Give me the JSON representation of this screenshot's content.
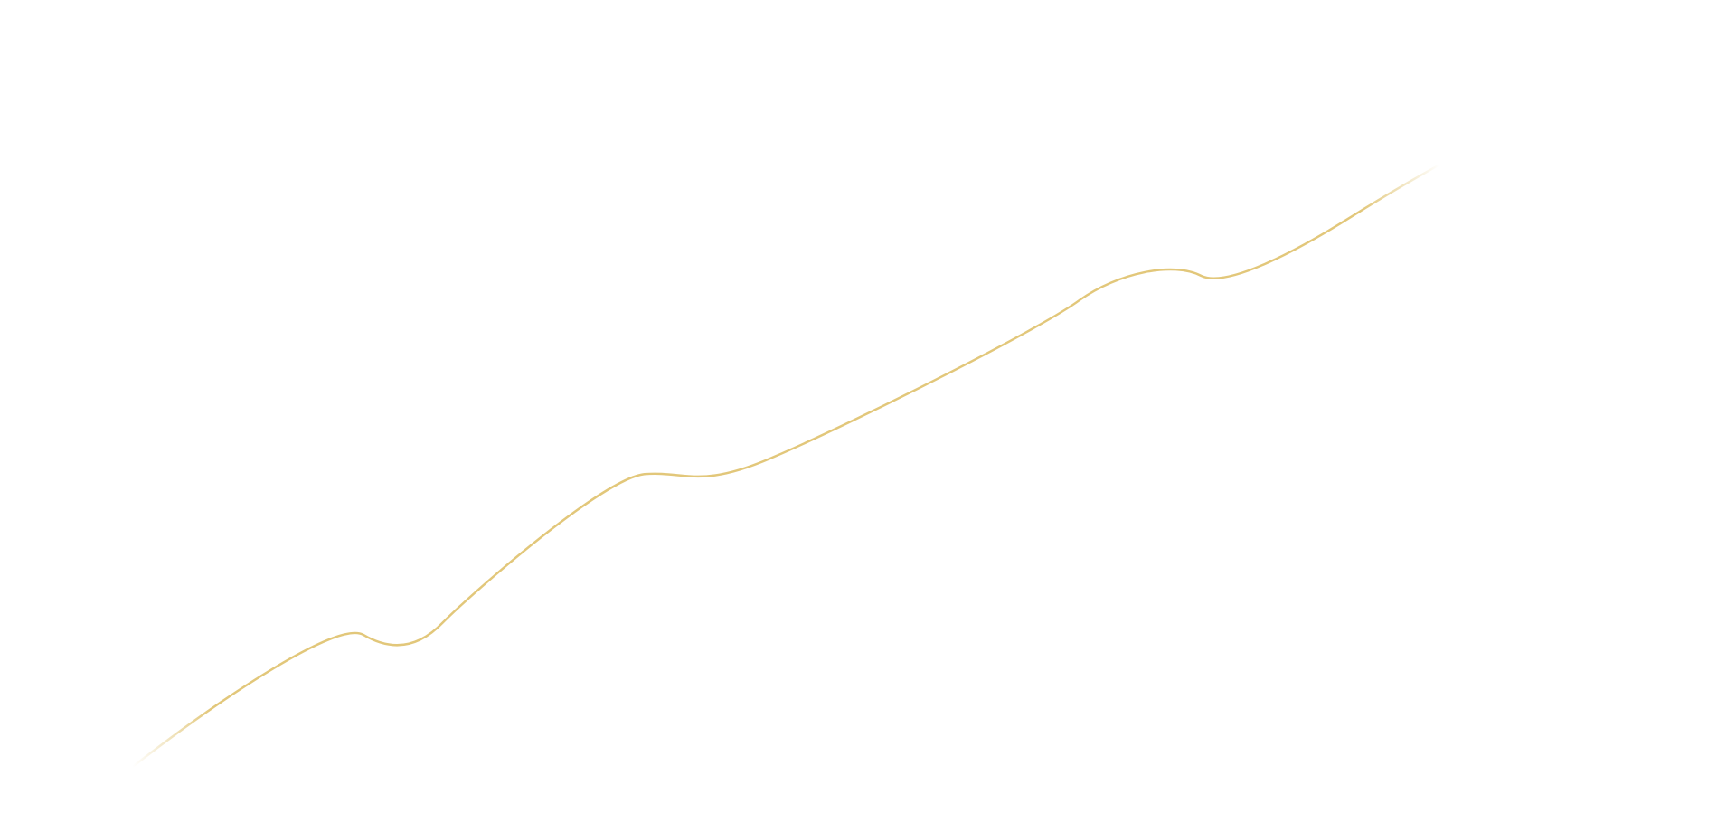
{
  "background_color": "#ffffff",
  "line": {
    "color": "#e2c77a",
    "fade": "both-ends"
  }
}
